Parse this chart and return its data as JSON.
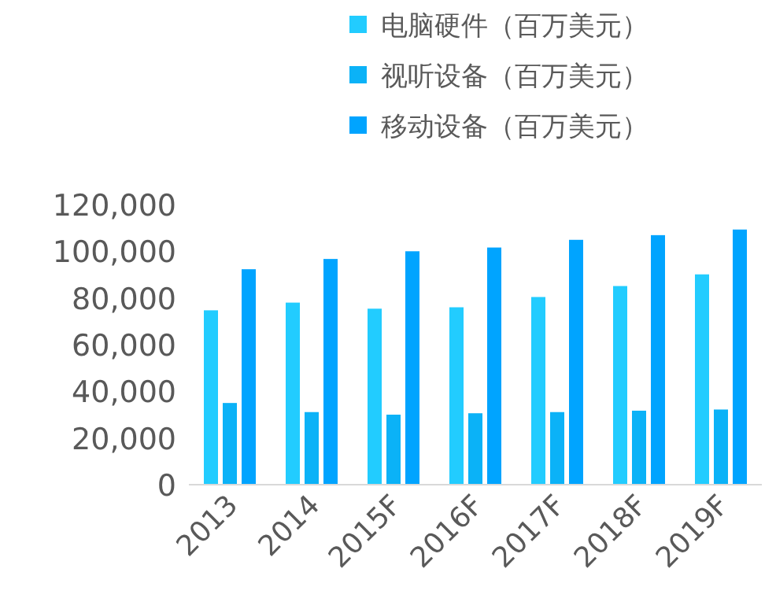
{
  "chart_data": {
    "type": "bar",
    "categories": [
      "2013",
      "2014",
      "2015F",
      "2016F",
      "2017F",
      "2018F",
      "2019F"
    ],
    "series": [
      {
        "name": "电脑硬件（百万美元）",
        "color": "#22ccff",
        "values": [
          74700,
          78000,
          75400,
          76000,
          80400,
          85100,
          90100
        ]
      },
      {
        "name": "视听设备（百万美元）",
        "color": "#0bb2f7",
        "values": [
          35000,
          31100,
          30000,
          30600,
          31100,
          31700,
          32200
        ]
      },
      {
        "name": "移动设备（百万美元）",
        "color": "#00a4ff",
        "values": [
          92300,
          96700,
          100000,
          101600,
          104900,
          106900,
          109300
        ]
      }
    ],
    "ylim": [
      0,
      120000
    ],
    "yticks": [
      0,
      {
        "value": 20000,
        "label": "20,000"
      },
      {
        "value": 40000,
        "label": "40,000"
      },
      {
        "value": 60000,
        "label": "60,000"
      },
      {
        "value": 80000,
        "label": "80,000"
      },
      {
        "value": 100000,
        "label": "100,000"
      },
      {
        "value": 120000,
        "label": "120,000"
      }
    ],
    "grid": false,
    "legend": "top"
  }
}
